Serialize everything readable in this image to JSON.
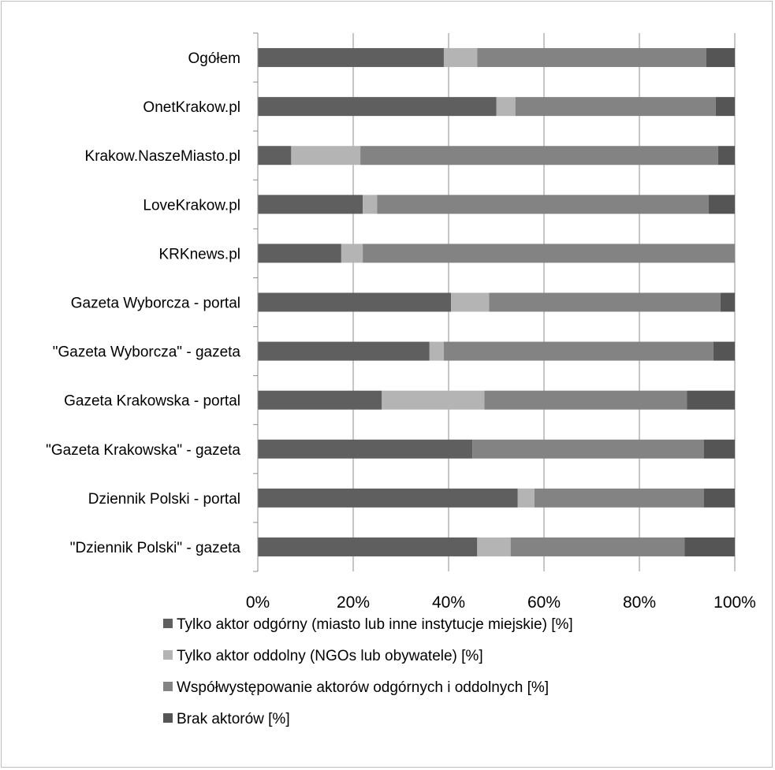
{
  "chart_data": {
    "type": "bar",
    "orientation": "horizontal",
    "stacked": "percent",
    "categories": [
      "Ogółem",
      "OnetKrakow.pl",
      "Krakow.NaszeMiasto.pl",
      "LoveKrakow.pl",
      "KRKnews.pl",
      "Gazeta Wyborcza - portal",
      "\"Gazeta Wyborcza\" - gazeta",
      "Gazeta Krakowska - portal",
      "\"Gazeta Krakowska\" - gazeta",
      "Dziennik Polski - portal",
      "\"Dziennik Polski\" - gazeta"
    ],
    "series": [
      {
        "name": "Tylko aktor odgórny (miasto lub inne instytucje miejskie) [%]",
        "color": "#5f5f5f",
        "values": [
          39,
          50,
          7,
          22,
          17.5,
          40.5,
          36,
          26,
          45,
          54.5,
          46
        ]
      },
      {
        "name": "Tylko aktor oddolny (NGOs lub obywatele) [%]",
        "color": "#b4b4b4",
        "values": [
          7,
          4,
          14.5,
          3,
          4.5,
          8,
          3,
          21.5,
          0,
          3.5,
          7
        ]
      },
      {
        "name": "Współwystępowanie aktorów odgórnych i oddolnych [%]",
        "color": "#838383",
        "values": [
          48,
          42,
          75,
          69.5,
          78,
          48.5,
          56.5,
          42.5,
          48.5,
          35.5,
          36.5
        ]
      },
      {
        "name": "Brak aktorów [%]",
        "color": "#555555",
        "values": [
          6,
          4,
          3.5,
          5.5,
          0,
          3,
          4.5,
          10,
          6.5,
          6.5,
          10.5
        ]
      }
    ],
    "xlim": [
      0,
      100
    ],
    "xticks": [
      "0%",
      "20%",
      "40%",
      "60%",
      "80%",
      "100%"
    ],
    "grid": true,
    "legend_position": "bottom"
  }
}
